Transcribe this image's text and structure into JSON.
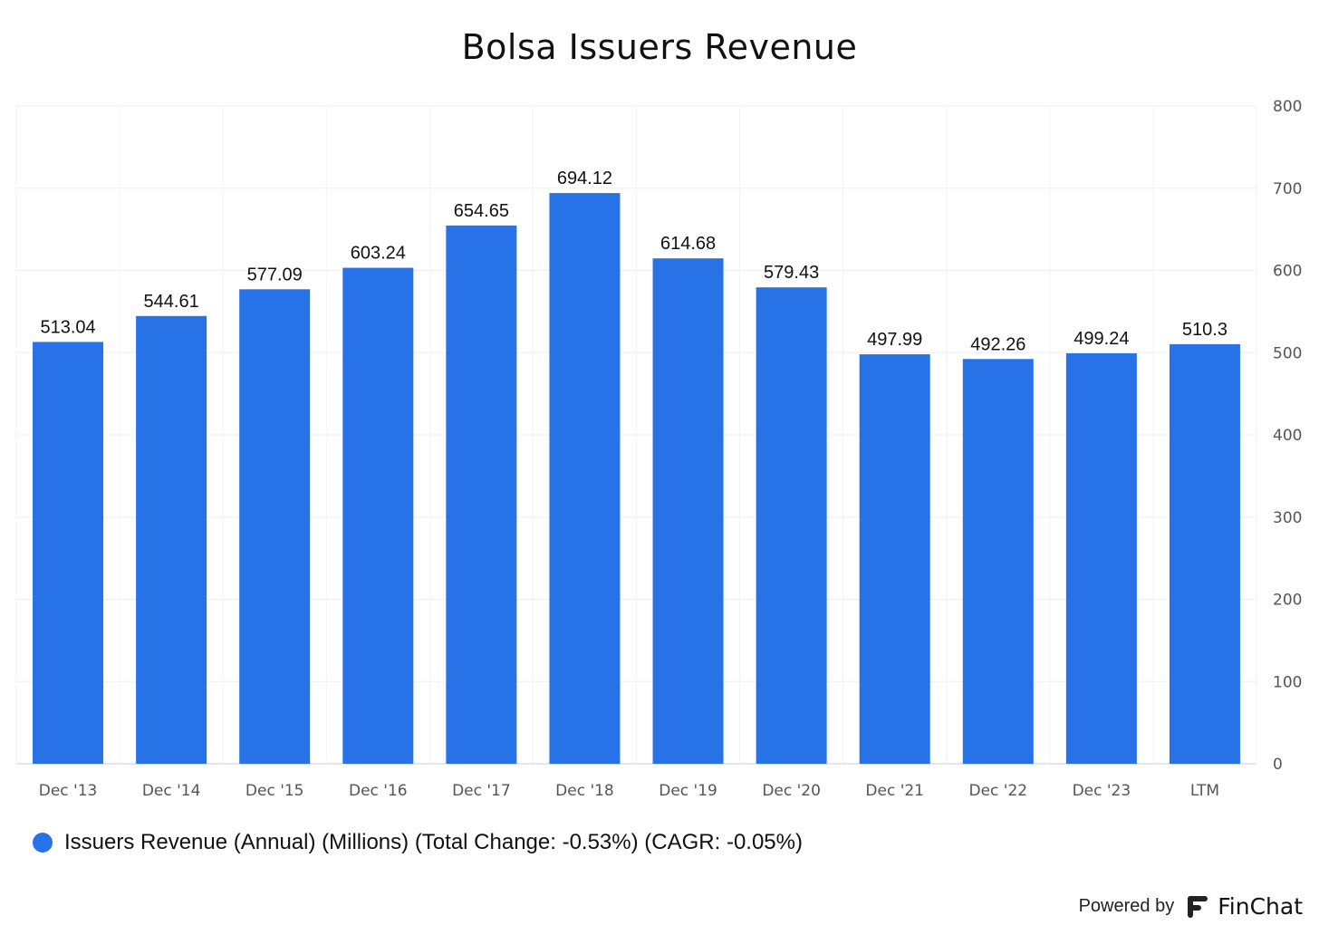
{
  "chart_data": {
    "type": "bar",
    "title": "Bolsa Issuers Revenue",
    "categories": [
      "Dec '13",
      "Dec '14",
      "Dec '15",
      "Dec '16",
      "Dec '17",
      "Dec '18",
      "Dec '19",
      "Dec '20",
      "Dec '21",
      "Dec '22",
      "Dec '23",
      "LTM"
    ],
    "values": [
      513.04,
      544.61,
      577.09,
      603.24,
      654.65,
      694.12,
      614.68,
      579.43,
      497.99,
      492.26,
      499.24,
      510.3
    ],
    "value_labels": [
      "513.04",
      "544.61",
      "577.09",
      "603.24",
      "654.65",
      "694.12",
      "614.68",
      "579.43",
      "497.99",
      "492.26",
      "499.24",
      "510.3"
    ],
    "ylim": [
      0,
      800
    ],
    "yticks": [
      0,
      100,
      200,
      300,
      400,
      500,
      600,
      700,
      800
    ],
    "y_axis_side": "right",
    "grid": true,
    "legend_position": "bottom-left",
    "series": [
      {
        "name": "Issuers Revenue (Annual) (Millions) (Total Change: -0.53%) (CAGR: -0.05%)",
        "color": "#2872E8"
      }
    ]
  },
  "footer": {
    "powered_by": "Powered by",
    "brand": "FinChat",
    "logo_icon": "finchat-logo-icon"
  }
}
